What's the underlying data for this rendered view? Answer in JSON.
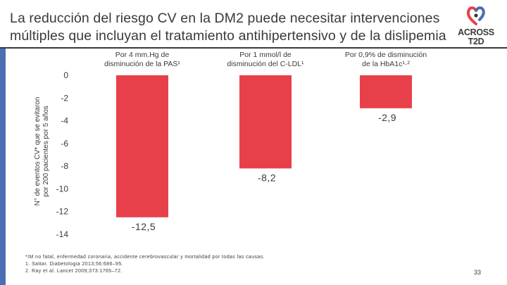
{
  "header": {
    "title_line1": "La reducción del riesgo CV en la DM2 puede necesitar intervenciones",
    "title_line2": "múltiples que incluyan el tratamiento antihipertensivo y de la dislipemia",
    "logo_line1": "ACROSS",
    "logo_line2": "T2D"
  },
  "colors": {
    "bar": "#e8404a",
    "text": "#3a3a3a",
    "accent_blue": "#4a6fb3"
  },
  "chart_data": {
    "type": "bar",
    "title": "",
    "ylabel_line1": "N° de eventos CV* que se evitaron",
    "ylabel_line2": "por 200 pacientes por 5 años",
    "ylim": [
      -14,
      0
    ],
    "yticks": [
      0,
      -2,
      -4,
      -6,
      -8,
      -10,
      -12,
      -14
    ],
    "ytick_labels": [
      "0",
      "-2",
      "-4",
      "-6",
      "-8",
      "-10",
      "-12",
      "-14"
    ],
    "categories": [
      {
        "line1": "Por 4 mm.Hg de",
        "line2": "disminución de la PAS¹"
      },
      {
        "line1": "Por 1 mmol/l de",
        "line2": "disminución del C-LDL¹"
      },
      {
        "line1": "Por 0,9% de disminución",
        "line2": "de la HbA1c¹·²"
      }
    ],
    "values": [
      -12.5,
      -8.2,
      -2.9
    ],
    "value_labels": [
      "-12,5",
      "-8,2",
      "-2,9"
    ]
  },
  "footnotes": {
    "line1": "*IM no fatal, enfermedad coronaria, accidente cerebrovascular y mortalidad por todas las causas.",
    "line2": "1. Sattar. Diabetologia 2013;56:686–95.",
    "line3": "2. Ray et al. Lancet 2009;373:1765–72."
  },
  "page": {
    "number": "33"
  }
}
